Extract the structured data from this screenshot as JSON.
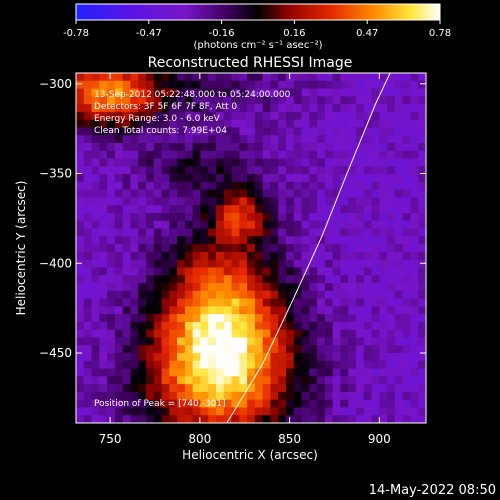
{
  "chart_data": {
    "type": "heatmap",
    "title": "Reconstructed RHESSI Image",
    "xlabel": "Heliocentric X (arcsec)",
    "ylabel": "Heliocentric Y (arcsec)",
    "xlim": [
      731,
      926
    ],
    "ylim": [
      -489,
      -294
    ],
    "x_ticks": [
      750,
      800,
      850,
      900
    ],
    "y_ticks": [
      -300,
      -350,
      -400,
      -450
    ],
    "colorbar": {
      "min": -0.78,
      "max": 0.78,
      "ticks": [
        "-0.78",
        "-0.47",
        "-0.16",
        "0.16",
        "0.47",
        "0.78"
      ],
      "unit_label": "(photons cm⁻² s⁻¹ asec⁻²)",
      "colormap": "hot-on-purple"
    },
    "annotations": {
      "time_range": "13-Sep-2012 05:22:48.000 to 05:24:00.000",
      "detectors": "Detectors: 3F 5F 6F 7F 8F, Att 0",
      "energy": "Energy Range: 3.0 - 6.0 keV",
      "clean": "Clean     Total counts: 7.99E+04",
      "peak": "Position of Peak = [740,-301]"
    },
    "limb": [
      [
        815,
        -489
      ],
      [
        835,
        -456
      ],
      [
        852,
        -420
      ],
      [
        868,
        -385
      ],
      [
        882,
        -350
      ],
      [
        898,
        -311
      ],
      [
        906,
        -294
      ]
    ],
    "peak": [
      740,
      -301
    ],
    "sources": [
      {
        "x": 811,
        "y": -462,
        "amp": 0.88,
        "sx": 30,
        "sy": 26
      },
      {
        "x": 812,
        "y": -420,
        "amp": 0.66,
        "sx": 24,
        "sy": 28
      },
      {
        "x": 823,
        "y": -373,
        "amp": 0.52,
        "sx": 11,
        "sy": 10
      },
      {
        "x": 800,
        "y": -346,
        "amp": 0.22,
        "sx": 28,
        "sy": 12
      },
      {
        "x": 747,
        "y": -305,
        "amp": 0.78,
        "sx": 22,
        "sy": 14
      },
      {
        "x": 805,
        "y": -303,
        "amp": 0.18,
        "sx": 36,
        "sy": 12
      }
    ],
    "background": -0.32
  },
  "footer": {
    "timestamp": "14-May-2022 08:50"
  }
}
